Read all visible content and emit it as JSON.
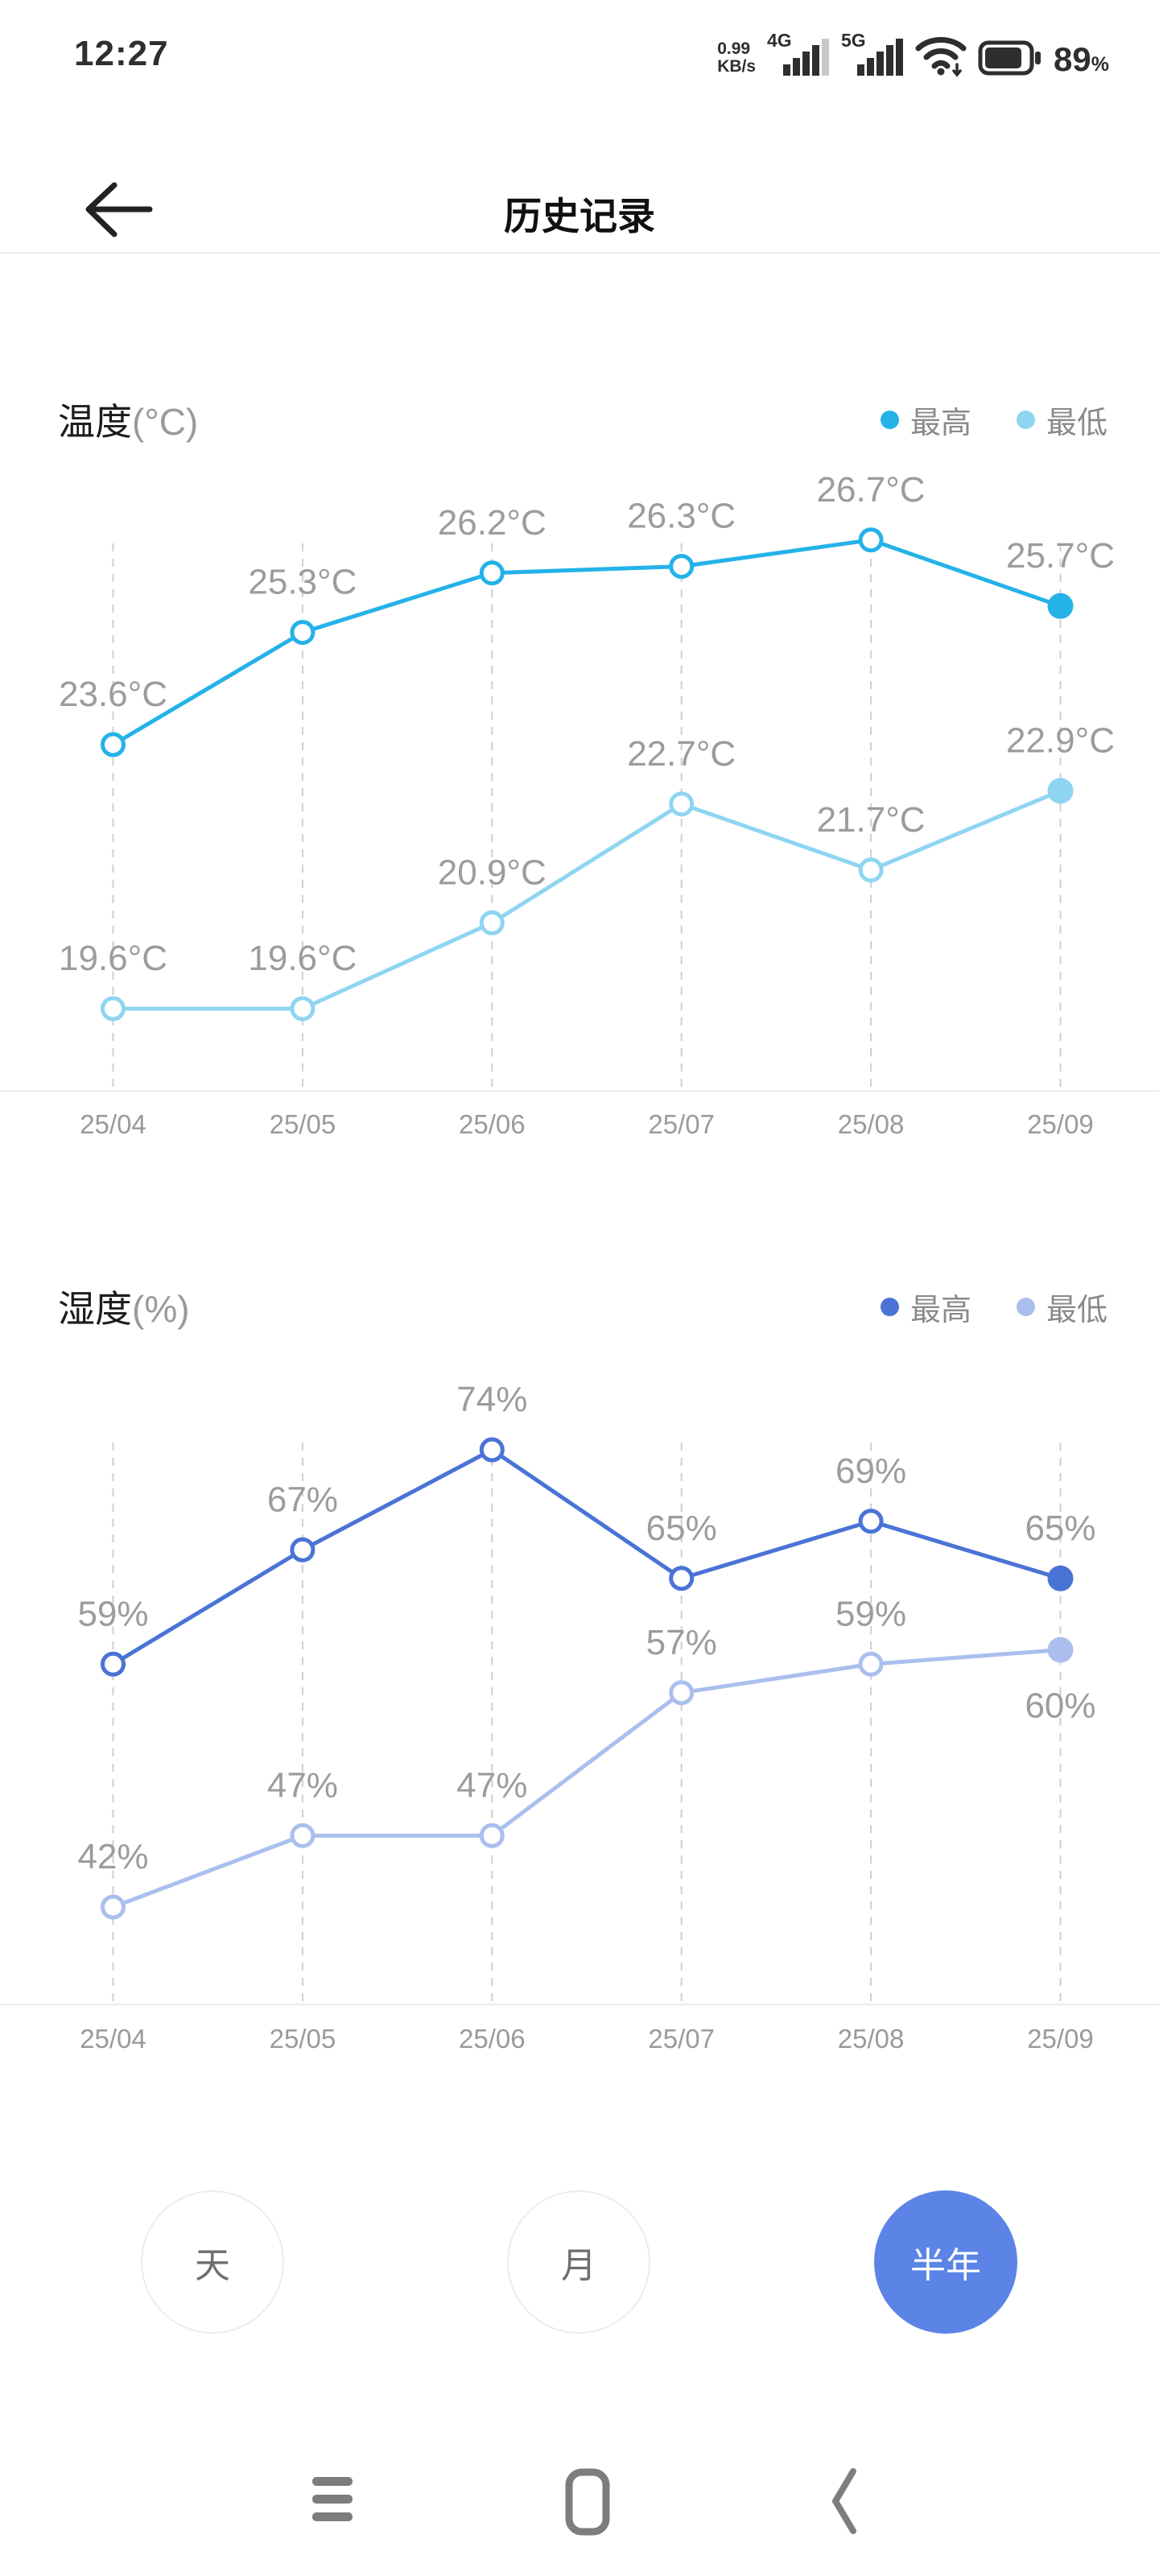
{
  "status_bar": {
    "time": "12:27",
    "data_rate_value": "0.99",
    "data_rate_unit": "KB/s",
    "sim1_label": "4G",
    "sim2_label": "5G",
    "battery_percent": "89",
    "battery_percent_suffix": "%"
  },
  "header": {
    "title": "历史记录"
  },
  "chart_data": [
    {
      "type": "line",
      "title_main": "温度",
      "title_unit": "(°C)",
      "title": "温度(°C)",
      "categories": [
        "25/04",
        "25/05",
        "25/06",
        "25/07",
        "25/08",
        "25/09"
      ],
      "grid": "vertical-dashed",
      "legend_position": "top-right",
      "ylim": [
        19.6,
        26.7
      ],
      "series": [
        {
          "name": "最高",
          "color": "#24b2e8",
          "values": [
            23.6,
            25.3,
            26.2,
            26.3,
            26.7,
            25.7
          ],
          "labels": [
            "23.6°C",
            "25.3°C",
            "26.2°C",
            "26.3°C",
            "26.7°C",
            "25.7°C"
          ],
          "label_pos": [
            "above",
            "above",
            "above",
            "above",
            "above",
            "above"
          ]
        },
        {
          "name": "最低",
          "color": "#8ed5f2",
          "values": [
            19.6,
            19.6,
            20.9,
            22.7,
            21.7,
            22.9
          ],
          "labels": [
            "19.6°C",
            "19.6°C",
            "20.9°C",
            "22.7°C",
            "21.7°C",
            "22.9°C"
          ],
          "label_pos": [
            "above",
            "above",
            "above",
            "above",
            "above",
            "above"
          ]
        }
      ]
    },
    {
      "type": "line",
      "title_main": "湿度",
      "title_unit": "(%)",
      "title": "湿度(%)",
      "categories": [
        "25/04",
        "25/05",
        "25/06",
        "25/07",
        "25/08",
        "25/09"
      ],
      "grid": "vertical-dashed",
      "legend_position": "top-right",
      "ylim": [
        42,
        74
      ],
      "series": [
        {
          "name": "最高",
          "color": "#4a73d6",
          "values": [
            59,
            67,
            74,
            65,
            69,
            65
          ],
          "labels": [
            "59%",
            "67%",
            "74%",
            "65%",
            "69%",
            "65%"
          ],
          "label_pos": [
            "above",
            "above",
            "above",
            "above",
            "above",
            "above"
          ]
        },
        {
          "name": "最低",
          "color": "#aabfee",
          "values": [
            42,
            47,
            47,
            57,
            59,
            60
          ],
          "labels": [
            "42%",
            "47%",
            "47%",
            "57%",
            "59%",
            "60%"
          ],
          "label_pos": [
            "above",
            "above",
            "above",
            "above",
            "above",
            "below"
          ]
        }
      ]
    }
  ],
  "periods": {
    "items": [
      {
        "label": "天",
        "selected": false
      },
      {
        "label": "月",
        "selected": false
      },
      {
        "label": "半年",
        "selected": true
      }
    ],
    "selected_color": "#5c84e6"
  }
}
